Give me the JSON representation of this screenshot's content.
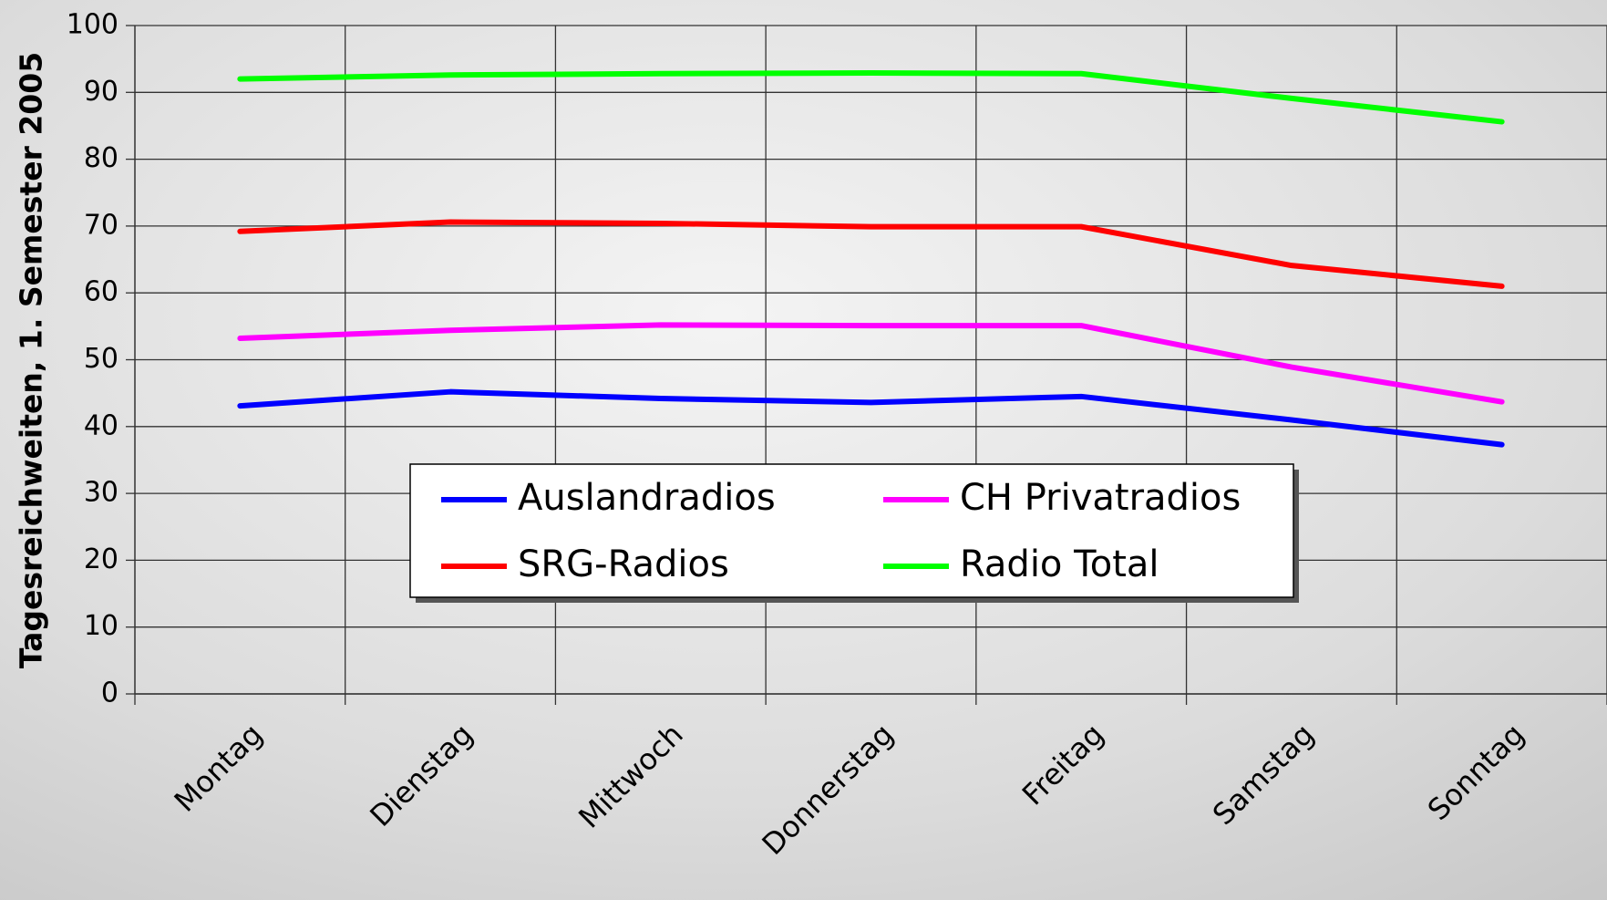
{
  "chart_data": {
    "type": "line",
    "y_label": "Tagesreichweiten, 1. Semester 2005",
    "categories": [
      "Montag",
      "Dienstag",
      "Mittwoch",
      "Donnerstag",
      "Freitag",
      "Samstag",
      "Sonntag"
    ],
    "series": [
      {
        "name": "Auslandradios",
        "color": "#0000ff",
        "values": [
          43.1,
          45.2,
          44.2,
          43.6,
          44.5,
          41.0,
          37.3
        ]
      },
      {
        "name": "CH Privatradios",
        "color": "#ff00ff",
        "values": [
          53.2,
          54.4,
          55.2,
          55.1,
          55.1,
          48.9,
          43.7
        ]
      },
      {
        "name": "SRG-Radios",
        "color": "#ff0000",
        "values": [
          69.2,
          70.6,
          70.4,
          69.9,
          69.9,
          64.1,
          61.0
        ]
      },
      {
        "name": "Radio Total",
        "color": "#00ff00",
        "values": [
          92.0,
          92.6,
          92.8,
          92.9,
          92.8,
          89.1,
          85.6
        ]
      }
    ],
    "ylim": [
      0,
      100
    ],
    "yticks": [
      0,
      10,
      20,
      30,
      40,
      50,
      60,
      70,
      80,
      90,
      100
    ],
    "grid": true
  }
}
